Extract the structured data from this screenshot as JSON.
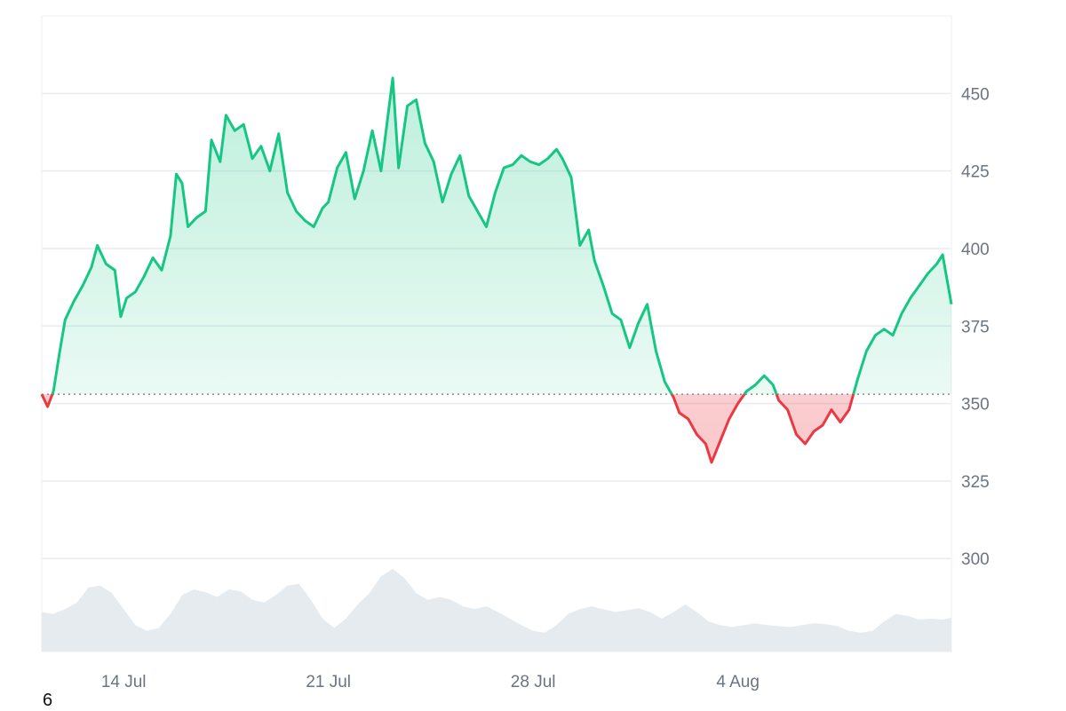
{
  "chart_data": {
    "type": "area",
    "title": "",
    "xlabel": "",
    "ylabel": "",
    "baseline": 353,
    "ylim": [
      270,
      475
    ],
    "y_ticks": [
      300,
      325,
      350,
      375,
      400,
      425,
      450
    ],
    "x_ticks": [
      {
        "label": "14 Jul",
        "day": 14
      },
      {
        "label": "21 Jul",
        "day": 21
      },
      {
        "label": "28 Jul",
        "day": 28
      },
      {
        "label": "4 Aug",
        "day": 35
      }
    ],
    "x_range_days": [
      11.2,
      42.3
    ],
    "colors": {
      "above": "#16c784",
      "below": "#ea3943",
      "above_fill": "#16c784",
      "below_fill": "#ea3943",
      "volume": "#e6ebef",
      "grid": "#e9ecef",
      "baseline": "#777777"
    },
    "series": [
      {
        "points": [
          [
            11.2,
            353
          ],
          [
            11.4,
            349
          ],
          [
            11.6,
            354
          ],
          [
            11.8,
            366
          ],
          [
            12.0,
            377
          ],
          [
            12.3,
            383
          ],
          [
            12.6,
            388
          ],
          [
            12.9,
            394
          ],
          [
            13.1,
            401
          ],
          [
            13.4,
            395
          ],
          [
            13.7,
            393
          ],
          [
            13.9,
            378
          ],
          [
            14.1,
            384
          ],
          [
            14.4,
            386
          ],
          [
            14.7,
            391
          ],
          [
            15.0,
            397
          ],
          [
            15.3,
            393
          ],
          [
            15.6,
            404
          ],
          [
            15.8,
            424
          ],
          [
            16.0,
            421
          ],
          [
            16.2,
            407
          ],
          [
            16.5,
            410
          ],
          [
            16.8,
            412
          ],
          [
            17.0,
            435
          ],
          [
            17.3,
            428
          ],
          [
            17.5,
            443
          ],
          [
            17.8,
            438
          ],
          [
            18.1,
            440
          ],
          [
            18.4,
            429
          ],
          [
            18.7,
            433
          ],
          [
            19.0,
            425
          ],
          [
            19.3,
            437
          ],
          [
            19.6,
            418
          ],
          [
            19.9,
            412
          ],
          [
            20.2,
            409
          ],
          [
            20.5,
            407
          ],
          [
            20.8,
            413
          ],
          [
            21.0,
            415
          ],
          [
            21.3,
            426
          ],
          [
            21.6,
            431
          ],
          [
            21.9,
            416
          ],
          [
            22.2,
            425
          ],
          [
            22.5,
            438
          ],
          [
            22.8,
            425
          ],
          [
            23.0,
            440
          ],
          [
            23.2,
            455
          ],
          [
            23.4,
            426
          ],
          [
            23.7,
            446
          ],
          [
            24.0,
            448
          ],
          [
            24.3,
            434
          ],
          [
            24.6,
            428
          ],
          [
            24.9,
            415
          ],
          [
            25.2,
            424
          ],
          [
            25.5,
            430
          ],
          [
            25.8,
            417
          ],
          [
            26.1,
            412
          ],
          [
            26.4,
            407
          ],
          [
            26.7,
            418
          ],
          [
            27.0,
            426
          ],
          [
            27.3,
            427
          ],
          [
            27.6,
            430
          ],
          [
            27.9,
            428
          ],
          [
            28.2,
            427
          ],
          [
            28.5,
            429
          ],
          [
            28.8,
            432
          ],
          [
            29.0,
            429
          ],
          [
            29.3,
            423
          ],
          [
            29.6,
            401
          ],
          [
            29.9,
            406
          ],
          [
            30.1,
            396
          ],
          [
            30.4,
            388
          ],
          [
            30.7,
            379
          ],
          [
            31.0,
            377
          ],
          [
            31.3,
            368
          ],
          [
            31.6,
            376
          ],
          [
            31.9,
            382
          ],
          [
            32.2,
            367
          ],
          [
            32.5,
            357
          ],
          [
            32.8,
            352
          ],
          [
            33.0,
            347
          ],
          [
            33.3,
            345
          ],
          [
            33.6,
            340
          ],
          [
            33.9,
            337
          ],
          [
            34.1,
            331
          ],
          [
            34.4,
            338
          ],
          [
            34.7,
            345
          ],
          [
            35.0,
            350
          ],
          [
            35.3,
            354
          ],
          [
            35.6,
            356
          ],
          [
            35.9,
            359
          ],
          [
            36.2,
            356
          ],
          [
            36.4,
            351
          ],
          [
            36.7,
            348
          ],
          [
            37.0,
            340
          ],
          [
            37.3,
            337
          ],
          [
            37.6,
            341
          ],
          [
            37.9,
            343
          ],
          [
            38.2,
            348
          ],
          [
            38.5,
            344
          ],
          [
            38.8,
            348
          ],
          [
            39.1,
            358
          ],
          [
            39.4,
            367
          ],
          [
            39.7,
            372
          ],
          [
            40.0,
            374
          ],
          [
            40.3,
            372
          ],
          [
            40.6,
            379
          ],
          [
            40.9,
            384
          ],
          [
            41.2,
            388
          ],
          [
            41.5,
            392
          ],
          [
            41.8,
            395
          ],
          [
            42.0,
            398
          ],
          [
            42.3,
            382
          ]
        ]
      }
    ],
    "volume": [
      [
        11.2,
        0.42
      ],
      [
        11.6,
        0.4
      ],
      [
        12.0,
        0.45
      ],
      [
        12.4,
        0.52
      ],
      [
        12.8,
        0.68
      ],
      [
        13.2,
        0.7
      ],
      [
        13.6,
        0.62
      ],
      [
        14.0,
        0.45
      ],
      [
        14.4,
        0.28
      ],
      [
        14.8,
        0.22
      ],
      [
        15.2,
        0.25
      ],
      [
        15.6,
        0.4
      ],
      [
        16.0,
        0.6
      ],
      [
        16.4,
        0.66
      ],
      [
        16.8,
        0.63
      ],
      [
        17.2,
        0.58
      ],
      [
        17.6,
        0.66
      ],
      [
        18.0,
        0.64
      ],
      [
        18.4,
        0.55
      ],
      [
        18.8,
        0.52
      ],
      [
        19.2,
        0.6
      ],
      [
        19.6,
        0.7
      ],
      [
        20.0,
        0.72
      ],
      [
        20.4,
        0.55
      ],
      [
        20.8,
        0.35
      ],
      [
        21.2,
        0.25
      ],
      [
        21.6,
        0.35
      ],
      [
        22.0,
        0.5
      ],
      [
        22.4,
        0.62
      ],
      [
        22.8,
        0.8
      ],
      [
        23.2,
        0.88
      ],
      [
        23.6,
        0.78
      ],
      [
        24.0,
        0.62
      ],
      [
        24.4,
        0.55
      ],
      [
        24.8,
        0.58
      ],
      [
        25.2,
        0.55
      ],
      [
        25.6,
        0.48
      ],
      [
        26.0,
        0.45
      ],
      [
        26.4,
        0.48
      ],
      [
        26.8,
        0.42
      ],
      [
        27.2,
        0.35
      ],
      [
        27.6,
        0.28
      ],
      [
        28.0,
        0.22
      ],
      [
        28.4,
        0.2
      ],
      [
        28.8,
        0.28
      ],
      [
        29.2,
        0.4
      ],
      [
        29.6,
        0.45
      ],
      [
        30.0,
        0.48
      ],
      [
        30.4,
        0.45
      ],
      [
        30.8,
        0.42
      ],
      [
        31.2,
        0.44
      ],
      [
        31.6,
        0.46
      ],
      [
        32.0,
        0.42
      ],
      [
        32.4,
        0.35
      ],
      [
        32.8,
        0.42
      ],
      [
        33.2,
        0.5
      ],
      [
        33.6,
        0.42
      ],
      [
        34.0,
        0.32
      ],
      [
        34.4,
        0.28
      ],
      [
        34.8,
        0.26
      ],
      [
        35.2,
        0.28
      ],
      [
        35.6,
        0.3
      ],
      [
        36.0,
        0.28
      ],
      [
        36.4,
        0.27
      ],
      [
        36.8,
        0.26
      ],
      [
        37.2,
        0.28
      ],
      [
        37.6,
        0.3
      ],
      [
        38.0,
        0.29
      ],
      [
        38.4,
        0.27
      ],
      [
        38.8,
        0.22
      ],
      [
        39.2,
        0.2
      ],
      [
        39.6,
        0.22
      ],
      [
        40.0,
        0.32
      ],
      [
        40.4,
        0.4
      ],
      [
        40.8,
        0.38
      ],
      [
        41.2,
        0.34
      ],
      [
        41.6,
        0.35
      ],
      [
        42.0,
        0.34
      ],
      [
        42.3,
        0.36
      ]
    ]
  },
  "footer_note": "6"
}
